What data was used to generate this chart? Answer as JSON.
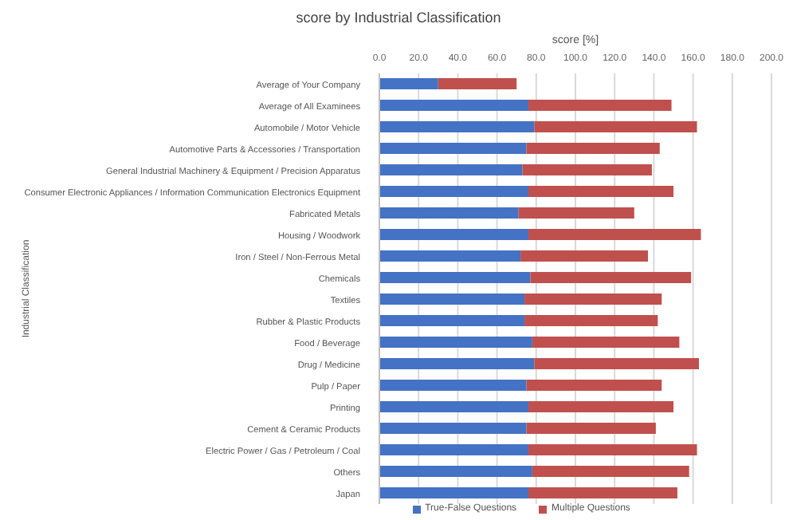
{
  "chart_data": {
    "type": "bar",
    "orientation": "horizontal",
    "stacked": true,
    "title": "score by Industrial Classification",
    "xlabel": "score [%]",
    "ylabel": "Industrial Classification",
    "categories": [
      "Average of Your Company",
      "Average of All Examinees",
      "Automobile / Motor Vehicle",
      "Automotive Parts & Accessories / Transportation",
      "General Industrial Machinery & Equipment / Precision Apparatus",
      "Consumer Electronic Appliances / Information Communication Electronics Equipment",
      "Fabricated Metals",
      "Housing / Woodwork",
      "Iron / Steel / Non-Ferrous Metal",
      "Chemicals",
      "Textiles",
      "Rubber & Plastic Products",
      "Food / Beverage",
      "Drug / Medicine",
      "Pulp / Paper",
      "Printing",
      "Cement & Ceramic Products",
      "Electric Power / Gas / Petroleum / Coal",
      "Others",
      "Japan"
    ],
    "series": [
      {
        "name": "True-False Questions",
        "color": "#4472c4",
        "values": [
          30,
          76,
          79,
          75,
          73,
          76,
          71,
          76,
          72,
          77,
          74,
          74,
          78,
          79,
          75,
          76,
          75,
          76,
          78,
          76
        ]
      },
      {
        "name": "Multiple Questions",
        "color": "#c0504d",
        "values": [
          40,
          73,
          83,
          68,
          66,
          74,
          59,
          88,
          65,
          82,
          70,
          68,
          75,
          84,
          69,
          74,
          66,
          86,
          80,
          76
        ]
      }
    ],
    "xlim": [
      0,
      200
    ],
    "xticks": [
      {
        "value": 0,
        "label": "0.0"
      },
      {
        "value": 20,
        "label": "20.0"
      },
      {
        "value": 40,
        "label": "40.0"
      },
      {
        "value": 60,
        "label": "60.0"
      },
      {
        "value": 80,
        "label": "80.0"
      },
      {
        "value": 100,
        "label": "100.0"
      },
      {
        "value": 120,
        "label": "120.0"
      },
      {
        "value": 140,
        "label": "140.0"
      },
      {
        "value": 160,
        "label": "160.0"
      },
      {
        "value": 180,
        "label": "180.0"
      },
      {
        "value": 200,
        "label": "200.0"
      }
    ],
    "grid": "x",
    "legend": "bottom"
  }
}
